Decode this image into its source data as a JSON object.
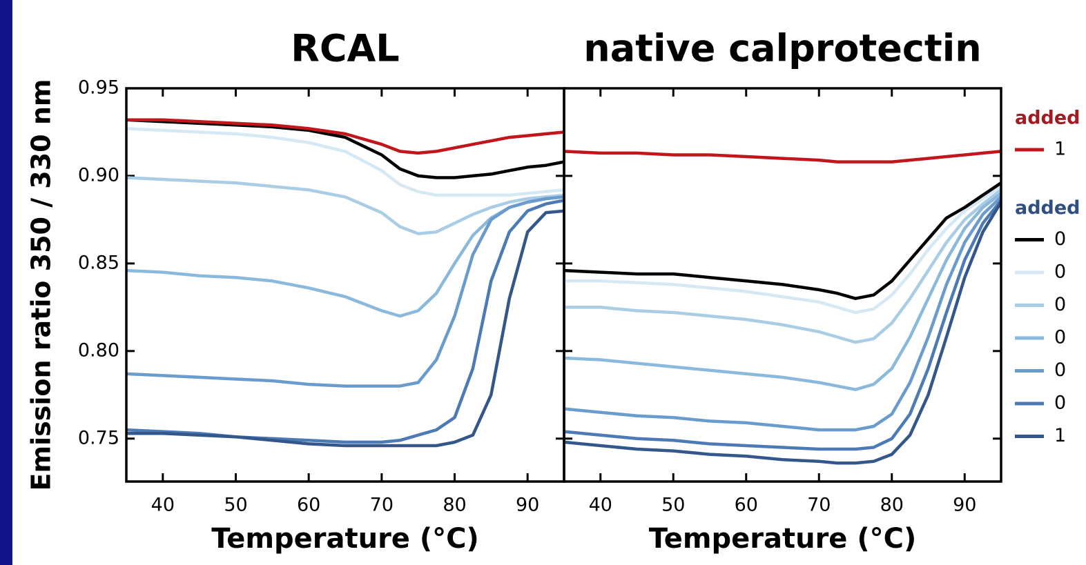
{
  "chart_data": [
    {
      "type": "line",
      "title": "RCAL",
      "xlabel": "Temperature (°C)",
      "ylabel": "Emission ratio 350 / 330 nm",
      "x": [
        35,
        40,
        45,
        50,
        55,
        60,
        65,
        70,
        72.5,
        75,
        77.5,
        80,
        82.5,
        85,
        87.5,
        90,
        92.5,
        95
      ],
      "xlim": [
        35,
        95
      ],
      "xticks": [
        40,
        50,
        60,
        70,
        80,
        90
      ],
      "ylim": [
        0.7255,
        0.95
      ],
      "yticks": [
        {
          "value": 0.75,
          "label": "0.75"
        },
        {
          "value": 0.8,
          "label": "0.80"
        },
        {
          "value": 0.85,
          "label": "0.85"
        },
        {
          "value": 0.9,
          "label": "0.90"
        },
        {
          "value": 0.95,
          "label": "0.95"
        }
      ],
      "show_ytick_labels": true,
      "series": [
        {
          "color": "#d6e8f4",
          "values": [
            0.927,
            0.926,
            0.925,
            0.924,
            0.922,
            0.919,
            0.914,
            0.903,
            0.895,
            0.891,
            0.889,
            0.889,
            0.889,
            0.889,
            0.889,
            0.89,
            0.891,
            0.892
          ]
        },
        {
          "color": "#aacde6",
          "values": [
            0.899,
            0.898,
            0.897,
            0.896,
            0.894,
            0.892,
            0.888,
            0.879,
            0.871,
            0.867,
            0.868,
            0.873,
            0.878,
            0.882,
            0.885,
            0.887,
            0.888,
            0.889
          ]
        },
        {
          "color": "#8bb9db",
          "values": [
            0.846,
            0.845,
            0.843,
            0.842,
            0.84,
            0.836,
            0.831,
            0.823,
            0.82,
            0.823,
            0.833,
            0.85,
            0.866,
            0.876,
            0.882,
            0.885,
            0.887,
            0.888
          ]
        },
        {
          "color": "#6a9bcd",
          "values": [
            0.787,
            0.786,
            0.785,
            0.784,
            0.783,
            0.781,
            0.78,
            0.78,
            0.78,
            0.782,
            0.795,
            0.82,
            0.855,
            0.875,
            0.882,
            0.885,
            0.887,
            0.888
          ]
        },
        {
          "color": "#4c7ab4",
          "values": [
            0.755,
            0.754,
            0.753,
            0.751,
            0.75,
            0.749,
            0.748,
            0.748,
            0.749,
            0.752,
            0.755,
            0.762,
            0.79,
            0.84,
            0.868,
            0.88,
            0.884,
            0.886
          ]
        },
        {
          "color": "#34578b",
          "values": [
            0.753,
            0.753,
            0.752,
            0.751,
            0.749,
            0.747,
            0.746,
            0.746,
            0.746,
            0.746,
            0.746,
            0.748,
            0.752,
            0.775,
            0.83,
            0.868,
            0.879,
            0.88
          ]
        },
        {
          "color": "#000000",
          "values": [
            0.932,
            0.931,
            0.93,
            0.929,
            0.928,
            0.926,
            0.922,
            0.912,
            0.904,
            0.9,
            0.899,
            0.899,
            0.9,
            0.901,
            0.903,
            0.905,
            0.906,
            0.908
          ]
        },
        {
          "color": "#c0161c",
          "values": [
            0.932,
            0.932,
            0.931,
            0.93,
            0.929,
            0.927,
            0.924,
            0.918,
            0.914,
            0.913,
            0.914,
            0.916,
            0.918,
            0.92,
            0.922,
            0.923,
            0.924,
            0.925
          ]
        }
      ]
    },
    {
      "type": "line",
      "title": "native calprotectin",
      "xlabel": "Temperature (°C)",
      "x": [
        35,
        40,
        45,
        50,
        55,
        60,
        65,
        70,
        72.5,
        75,
        77.5,
        80,
        82.5,
        85,
        87.5,
        90,
        92.5,
        95
      ],
      "xlim": [
        35,
        95
      ],
      "xticks": [
        40,
        50,
        60,
        70,
        80,
        90
      ],
      "ylim": [
        0.7255,
        0.95
      ],
      "yticks": [
        0.75,
        0.8,
        0.85,
        0.9,
        0.95
      ],
      "show_ytick_labels": false,
      "series": [
        {
          "color": "#d6e8f4",
          "values": [
            0.84,
            0.84,
            0.839,
            0.838,
            0.836,
            0.834,
            0.831,
            0.828,
            0.825,
            0.822,
            0.824,
            0.832,
            0.844,
            0.858,
            0.87,
            0.88,
            0.887,
            0.894
          ]
        },
        {
          "color": "#aacde6",
          "values": [
            0.825,
            0.825,
            0.823,
            0.822,
            0.82,
            0.818,
            0.815,
            0.811,
            0.808,
            0.805,
            0.807,
            0.816,
            0.83,
            0.846,
            0.862,
            0.875,
            0.884,
            0.892
          ]
        },
        {
          "color": "#8bb9db",
          "values": [
            0.796,
            0.795,
            0.793,
            0.791,
            0.789,
            0.787,
            0.785,
            0.782,
            0.78,
            0.778,
            0.781,
            0.79,
            0.808,
            0.83,
            0.852,
            0.87,
            0.882,
            0.89
          ]
        },
        {
          "color": "#6a9bcd",
          "values": [
            0.767,
            0.765,
            0.763,
            0.762,
            0.76,
            0.759,
            0.757,
            0.755,
            0.755,
            0.755,
            0.757,
            0.764,
            0.782,
            0.808,
            0.838,
            0.862,
            0.878,
            0.888
          ]
        },
        {
          "color": "#4c7ab4",
          "values": [
            0.754,
            0.752,
            0.75,
            0.749,
            0.747,
            0.746,
            0.745,
            0.744,
            0.744,
            0.744,
            0.745,
            0.75,
            0.764,
            0.79,
            0.822,
            0.852,
            0.873,
            0.886
          ]
        },
        {
          "color": "#34578b",
          "values": [
            0.748,
            0.746,
            0.744,
            0.743,
            0.741,
            0.74,
            0.738,
            0.737,
            0.736,
            0.736,
            0.737,
            0.741,
            0.752,
            0.775,
            0.808,
            0.842,
            0.868,
            0.885
          ]
        },
        {
          "color": "#000000",
          "values": [
            0.846,
            0.845,
            0.844,
            0.844,
            0.842,
            0.84,
            0.838,
            0.835,
            0.833,
            0.83,
            0.832,
            0.84,
            0.852,
            0.864,
            0.876,
            0.882,
            0.889,
            0.896
          ]
        },
        {
          "color": "#c0161c",
          "values": [
            0.914,
            0.913,
            0.913,
            0.912,
            0.912,
            0.911,
            0.91,
            0.909,
            0.908,
            0.908,
            0.908,
            0.908,
            0.909,
            0.91,
            0.911,
            0.912,
            0.913,
            0.914
          ]
        }
      ]
    }
  ],
  "legend": {
    "groups": [
      {
        "title": "added",
        "color": "#a01c22",
        "items": [
          {
            "label": "1",
            "color": "#c0161c"
          }
        ]
      },
      {
        "title": "added",
        "color": "#2e4f80",
        "items": [
          {
            "label": "0",
            "color": "#000000"
          },
          {
            "label": "0",
            "color": "#d6e8f4"
          },
          {
            "label": "0",
            "color": "#aacde6"
          },
          {
            "label": "0",
            "color": "#8bb9db"
          },
          {
            "label": "0",
            "color": "#6a9bcd"
          },
          {
            "label": "0",
            "color": "#4c7ab4"
          },
          {
            "label": "1",
            "color": "#34578b"
          }
        ]
      }
    ]
  }
}
